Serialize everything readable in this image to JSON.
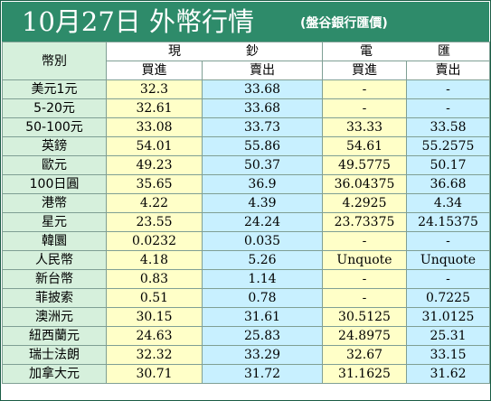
{
  "header": {
    "title": "10月27日 外幣行情",
    "subtitle": "(盤谷銀行匯價)"
  },
  "columns": {
    "label_header": "幣別",
    "cash_group": [
      "現",
      "鈔"
    ],
    "transfer_group": [
      "電",
      "匯"
    ],
    "cash_buy": "買進",
    "cash_sell": "賣出",
    "transfer_buy": "買進",
    "transfer_sell": "賣出"
  },
  "rows": [
    {
      "currency": "美元1元",
      "cash_buy": "32.3",
      "cash_sell": "33.68",
      "tt_buy": "-",
      "tt_sell": "-"
    },
    {
      "currency": "5-20元",
      "cash_buy": "32.61",
      "cash_sell": "33.68",
      "tt_buy": "-",
      "tt_sell": "-"
    },
    {
      "currency": "50-100元",
      "cash_buy": "33.08",
      "cash_sell": "33.73",
      "tt_buy": "33.33",
      "tt_sell": "33.58"
    },
    {
      "currency": "英鎊",
      "cash_buy": "54.01",
      "cash_sell": "55.86",
      "tt_buy": "54.61",
      "tt_sell": "55.2575"
    },
    {
      "currency": "歐元",
      "cash_buy": "49.23",
      "cash_sell": "50.37",
      "tt_buy": "49.5775",
      "tt_sell": "50.17"
    },
    {
      "currency": "100日圓",
      "cash_buy": "35.65",
      "cash_sell": "36.9",
      "tt_buy": "36.04375",
      "tt_sell": "36.68"
    },
    {
      "currency": "港幣",
      "cash_buy": "4.22",
      "cash_sell": "4.39",
      "tt_buy": "4.2925",
      "tt_sell": "4.34"
    },
    {
      "currency": "星元",
      "cash_buy": "23.55",
      "cash_sell": "24.24",
      "tt_buy": "23.73375",
      "tt_sell": "24.15375"
    },
    {
      "currency": "韓圜",
      "cash_buy": "0.0232",
      "cash_sell": "0.035",
      "tt_buy": "-",
      "tt_sell": "-"
    },
    {
      "currency": "人民幣",
      "cash_buy": "4.18",
      "cash_sell": "5.26",
      "tt_buy": "Unquote",
      "tt_sell": "Unquote"
    },
    {
      "currency": "新台幣",
      "cash_buy": "0.83",
      "cash_sell": "1.14",
      "tt_buy": "-",
      "tt_sell": "-"
    },
    {
      "currency": "菲披索",
      "cash_buy": "0.51",
      "cash_sell": "0.78",
      "tt_buy": "-",
      "tt_sell": "0.7225"
    },
    {
      "currency": "澳洲元",
      "cash_buy": "30.15",
      "cash_sell": "31.61",
      "tt_buy": "30.5125",
      "tt_sell": "31.0125"
    },
    {
      "currency": "紐西蘭元",
      "cash_buy": "24.63",
      "cash_sell": "25.83",
      "tt_buy": "24.8975",
      "tt_sell": "25.31"
    },
    {
      "currency": "瑞士法朗",
      "cash_buy": "32.32",
      "cash_sell": "33.29",
      "tt_buy": "32.67",
      "tt_sell": "33.15"
    },
    {
      "currency": "加拿大元",
      "cash_buy": "30.71",
      "cash_sell": "31.72",
      "tt_buy": "31.1625",
      "tt_sell": "31.62"
    }
  ],
  "colors": {
    "title_bar": "#2e8b6a",
    "label_cells": "#d6f0dc",
    "buy_cells": "#ffffc8",
    "sell_cells": "#c8f0ff"
  }
}
